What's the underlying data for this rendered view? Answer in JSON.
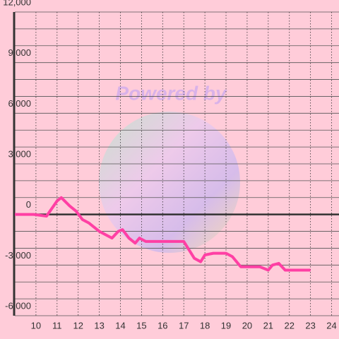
{
  "chart_data": {
    "type": "line",
    "watermark": "Powered by",
    "x": [
      9,
      9.9,
      10.5,
      11,
      11.2,
      11.6,
      11.9,
      12.2,
      12.5,
      13,
      13.3,
      13.6,
      13.9,
      14.1,
      14.4,
      14.7,
      14.9,
      15.2,
      16.6,
      17,
      17.2,
      17.5,
      17.8,
      18,
      18.4,
      19,
      19.3,
      19.7,
      20.6,
      21,
      21.2,
      21.5,
      21.8,
      23
    ],
    "series": [
      {
        "color": "#ff3fa4",
        "values": [
          0,
          0,
          -100,
          800,
          1000,
          500,
          200,
          -300,
          -500,
          -1000,
          -1200,
          -1400,
          -1000,
          -900,
          -1400,
          -1700,
          -1400,
          -1600,
          -1600,
          -1600,
          -2000,
          -2600,
          -2800,
          -2400,
          -2300,
          -2300,
          -2500,
          -3100,
          -3100,
          -3300,
          -3000,
          -2900,
          -3300,
          -3300
        ]
      }
    ],
    "xlim": [
      9,
      24.35
    ],
    "xticks": [
      10,
      11,
      12,
      13,
      14,
      15,
      16,
      17,
      18,
      19,
      20,
      21,
      22,
      23,
      24
    ],
    "ylim": [
      -6000,
      12000
    ],
    "yticks": [
      {
        "value": -6000,
        "label": "-6,000"
      },
      {
        "value": -3000,
        "label": "-3,000"
      },
      0,
      {
        "value": 3000,
        "label": "3,000"
      },
      {
        "value": 6000,
        "label": "6,000"
      },
      {
        "value": 9000,
        "label": "9,000"
      },
      {
        "value": 12000,
        "label": "12,000"
      }
    ],
    "yminorticks": [
      -5000,
      -4000,
      -2000,
      -1000,
      1000,
      2000,
      4000,
      5000,
      7000,
      8000,
      10000,
      11000
    ],
    "grid": true
  }
}
